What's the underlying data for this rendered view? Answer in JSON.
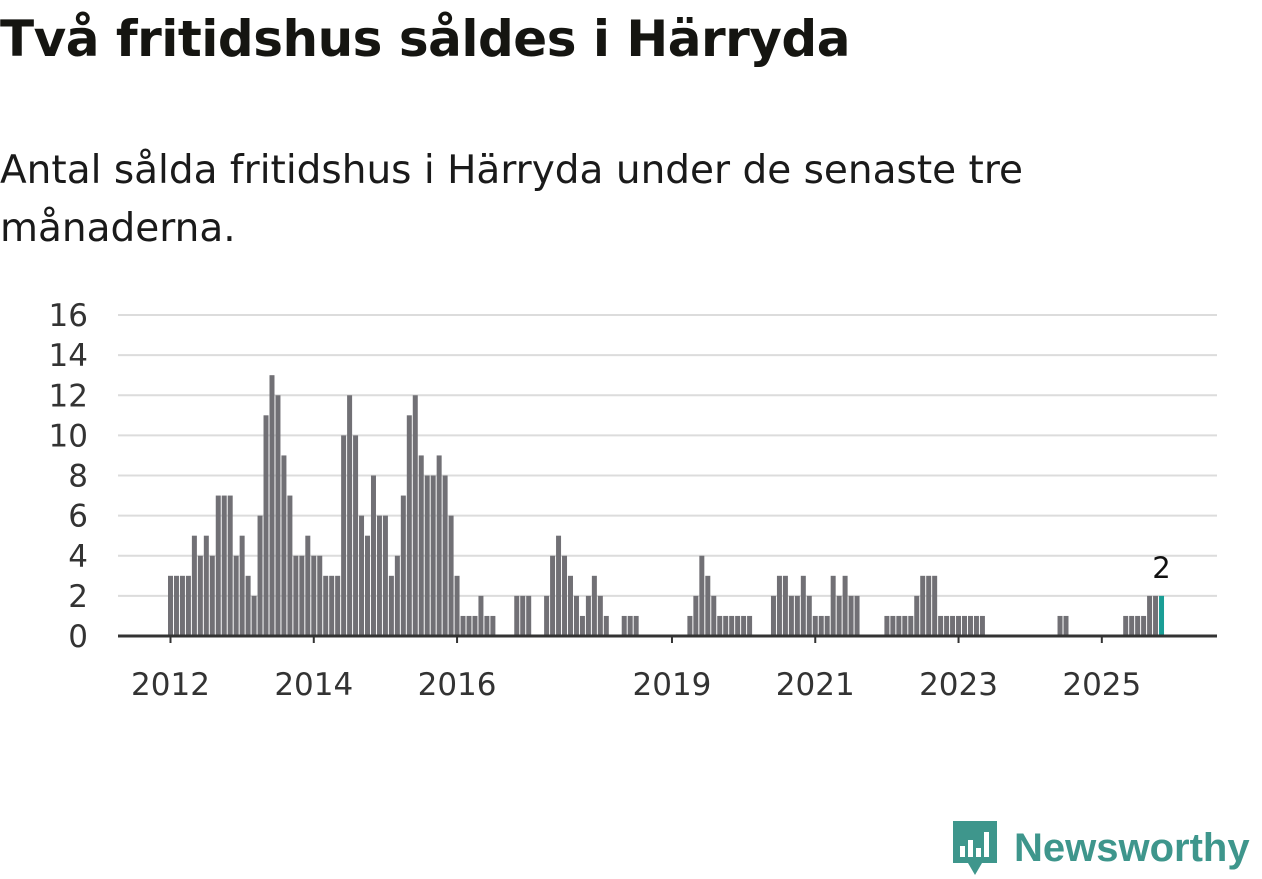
{
  "title": "Två fritidshus såldes i Härryda",
  "subtitle": "Antal sålda fritidshus i Härryda under de senaste tre månaderna.",
  "brand": "Newsworthy",
  "colors": {
    "bar": "#717075",
    "highlight": "#1a9e96",
    "grid": "#dcdcdc",
    "axis": "#333333",
    "brand": "#3e968c"
  },
  "chart_data": {
    "type": "bar",
    "title": "Två fritidshus såldes i Härryda",
    "xlabel": "",
    "ylabel": "",
    "ylim": [
      0,
      16
    ],
    "yticks": [
      "0",
      "2",
      "4",
      "6",
      "8",
      "10",
      "12",
      "14",
      "16"
    ],
    "xticks": [
      "2012",
      "2014",
      "2016",
      "2019",
      "2021",
      "2023",
      "2025"
    ],
    "start": "2012-01",
    "frequency": "monthly",
    "grid": true,
    "highlight_label": "2",
    "values": [
      3,
      3,
      3,
      3,
      5,
      4,
      5,
      4,
      7,
      7,
      7,
      4,
      5,
      3,
      2,
      6,
      11,
      13,
      12,
      9,
      7,
      4,
      4,
      5,
      4,
      4,
      3,
      3,
      3,
      10,
      12,
      10,
      6,
      5,
      8,
      6,
      6,
      3,
      4,
      7,
      11,
      12,
      9,
      8,
      8,
      9,
      8,
      6,
      3,
      1,
      1,
      1,
      2,
      1,
      1,
      0,
      0,
      0,
      2,
      2,
      2,
      0,
      0,
      2,
      4,
      5,
      4,
      3,
      2,
      1,
      2,
      3,
      2,
      1,
      0,
      0,
      1,
      1,
      1,
      0,
      0,
      0,
      0,
      0,
      0,
      0,
      0,
      1,
      2,
      4,
      3,
      2,
      1,
      1,
      1,
      1,
      1,
      1,
      0,
      0,
      0,
      2,
      3,
      3,
      2,
      2,
      3,
      2,
      1,
      1,
      1,
      3,
      2,
      3,
      2,
      2,
      0,
      0,
      0,
      0,
      1,
      1,
      1,
      1,
      1,
      2,
      3,
      3,
      3,
      1,
      1,
      1,
      1,
      1,
      1,
      1,
      1,
      0,
      0,
      0,
      0,
      0,
      0,
      0,
      0,
      0,
      0,
      0,
      0,
      1,
      1,
      0,
      0,
      0,
      0,
      0,
      0,
      0,
      0,
      0,
      1,
      1,
      1,
      1,
      2,
      2,
      2
    ]
  }
}
